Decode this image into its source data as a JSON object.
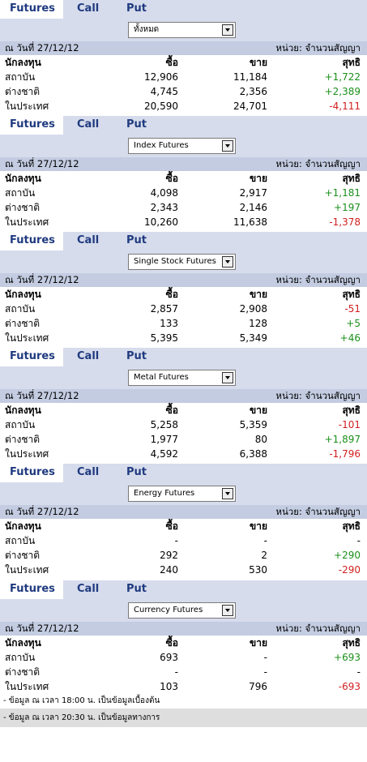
{
  "tabs": [
    "Futures",
    "Call",
    "Put"
  ],
  "date_label": "ณ วันที่ 27/12/12",
  "unit_label": "หน่วย: จำนวนสัญญา",
  "headers": [
    "นักลงทุน",
    "ซื้อ",
    "ขาย",
    "สุทธิ"
  ],
  "investors": [
    "สถาบัน",
    "ต่างชาติ",
    "ในประเทศ"
  ],
  "sections": [
    {
      "select": "ทั้งหมด",
      "rows": [
        [
          "12,906",
          "11,184",
          "+1,722"
        ],
        [
          "4,745",
          "2,356",
          "+2,389"
        ],
        [
          "20,590",
          "24,701",
          "-4,111"
        ]
      ]
    },
    {
      "select": "Index Futures",
      "rows": [
        [
          "4,098",
          "2,917",
          "+1,181"
        ],
        [
          "2,343",
          "2,146",
          "+197"
        ],
        [
          "10,260",
          "11,638",
          "-1,378"
        ]
      ]
    },
    {
      "select": "Single Stock Futures",
      "rows": [
        [
          "2,857",
          "2,908",
          "-51"
        ],
        [
          "133",
          "128",
          "+5"
        ],
        [
          "5,395",
          "5,349",
          "+46"
        ]
      ]
    },
    {
      "select": "Metal Futures",
      "rows": [
        [
          "5,258",
          "5,359",
          "-101"
        ],
        [
          "1,977",
          "80",
          "+1,897"
        ],
        [
          "4,592",
          "6,388",
          "-1,796"
        ]
      ]
    },
    {
      "select": "Energy Futures",
      "rows": [
        [
          "-",
          "-",
          "-"
        ],
        [
          "292",
          "2",
          "+290"
        ],
        [
          "240",
          "530",
          "-290"
        ]
      ]
    },
    {
      "select": "Currency Futures",
      "rows": [
        [
          "693",
          "-",
          "+693"
        ],
        [
          "-",
          "-",
          "-"
        ],
        [
          "103",
          "796",
          "-693"
        ]
      ]
    }
  ],
  "notes": [
    "- ข้อมูล ณ เวลา 18:00 น. เป็นข้อมูลเบื้องต้น",
    "- ข้อมูล ณ เวลา 20:30 น. เป็นข้อมูลทางการ"
  ],
  "colors": {
    "tab_bg": "#d7dcec",
    "date_bg": "#c3cce1",
    "positive": "#1b8f1b",
    "negative": "#d21f1f",
    "tab_text": "#1f3a7f"
  }
}
